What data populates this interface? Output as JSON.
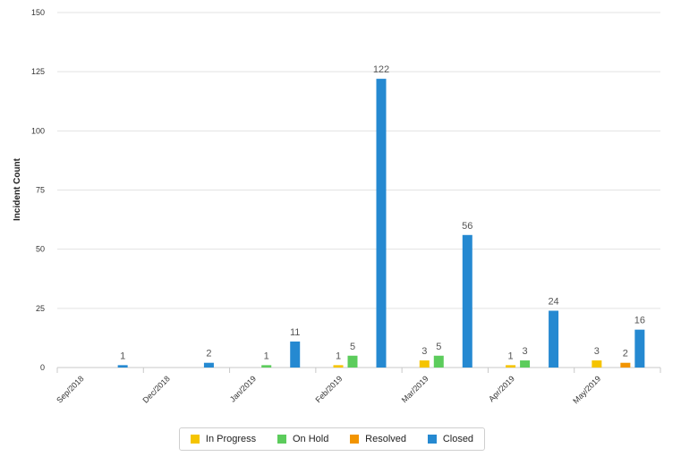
{
  "chart_data": {
    "type": "bar",
    "ylabel": "Incident Count",
    "xlabel": "",
    "title": "",
    "ylim": [
      0,
      150
    ],
    "yticks": [
      0,
      25,
      50,
      75,
      100,
      125,
      150
    ],
    "grid": true,
    "legend_position": "bottom",
    "categories": [
      "Sep/2018",
      "Dec/2018",
      "Jan/2019",
      "Feb/2019",
      "Mar/2019",
      "Apr/2019",
      "May/2019"
    ],
    "series": [
      {
        "name": "In Progress",
        "color": "#f5c400",
        "values": [
          null,
          null,
          null,
          1,
          3,
          1,
          3
        ]
      },
      {
        "name": "On Hold",
        "color": "#5ccc5c",
        "values": [
          null,
          null,
          1,
          5,
          5,
          3,
          null
        ]
      },
      {
        "name": "Resolved",
        "color": "#f29400",
        "values": [
          null,
          null,
          null,
          null,
          null,
          null,
          2
        ]
      },
      {
        "name": "Closed",
        "color": "#2589d1",
        "values": [
          1,
          2,
          11,
          122,
          56,
          24,
          16
        ]
      }
    ]
  }
}
